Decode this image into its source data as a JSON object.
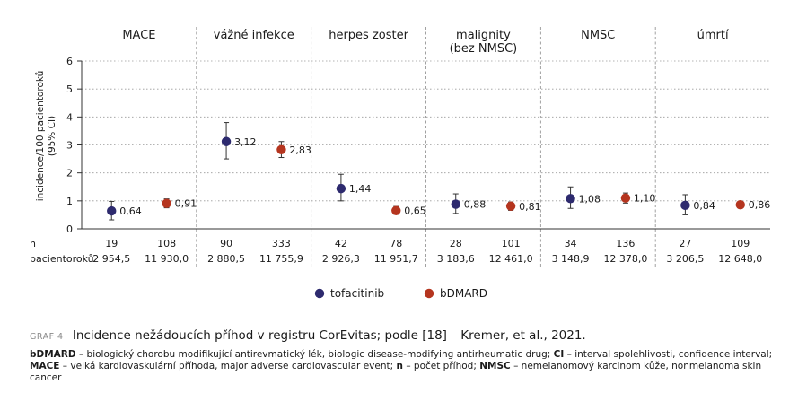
{
  "chart_data": {
    "type": "scatter",
    "ylabel": "incidence/100 pacientoroků (95% CI)",
    "ylabel_lines": [
      "incidence/100 pacientoroků",
      "(95% CI)"
    ],
    "ylim": [
      0,
      6
    ],
    "yticks": [
      0,
      1,
      2,
      3,
      4,
      5,
      6
    ],
    "grid": "horizontal dotted",
    "legend_position": "bottom-center",
    "groups": [
      {
        "label": "MACE",
        "label_lines": [
          "MACE"
        ]
      },
      {
        "label": "vážné infekce",
        "label_lines": [
          "vážné infekce"
        ]
      },
      {
        "label": "herpes zoster",
        "label_lines": [
          "herpes zoster"
        ]
      },
      {
        "label": "malignity (bez NMSC)",
        "label_lines": [
          "malignity",
          "(bez NMSC)"
        ]
      },
      {
        "label": "NMSC",
        "label_lines": [
          "NMSC"
        ]
      },
      {
        "label": "úmrtí",
        "label_lines": [
          "úmrtí"
        ]
      }
    ],
    "series": [
      {
        "name": "tofacitinib",
        "color": "#2d2a6e",
        "values": [
          0.64,
          3.12,
          1.44,
          0.88,
          1.08,
          0.84
        ],
        "value_labels": [
          "0,64",
          "3,12",
          "1,44",
          "0,88",
          "1,08",
          "0,84"
        ],
        "ci_low": [
          0.32,
          2.5,
          1.0,
          0.55,
          0.73,
          0.5
        ],
        "ci_high": [
          0.98,
          3.8,
          1.95,
          1.25,
          1.5,
          1.22
        ],
        "n": [
          "19",
          "90",
          "42",
          "28",
          "34",
          "27"
        ],
        "patient_years": [
          "2 954,5",
          "2 880,5",
          "2 926,3",
          "3 183,6",
          "3 148,9",
          "3 206,5"
        ]
      },
      {
        "name": "bDMARD",
        "color": "#b5351f",
        "values": [
          0.91,
          2.83,
          0.65,
          0.81,
          1.1,
          0.86
        ],
        "value_labels": [
          "0,91",
          "2,83",
          "0,65",
          "0,81",
          "1,10",
          "0,86"
        ],
        "ci_low": [
          0.75,
          2.55,
          0.52,
          0.66,
          0.92,
          0.74
        ],
        "ci_high": [
          1.07,
          3.12,
          0.8,
          0.96,
          1.28,
          0.98
        ],
        "n": [
          "108",
          "333",
          "78",
          "101",
          "136",
          "109"
        ],
        "patient_years": [
          "11 930,0",
          "11 755,9",
          "11 951,7",
          "12 461,0",
          "12 378,0",
          "12 648,0"
        ]
      }
    ],
    "row_labels": {
      "n": "n",
      "patient_years": "pacientoroků"
    }
  },
  "caption": {
    "tag": "GRAF 4",
    "title": "Incidence nežádoucích příhod v registru CorEvitas; podle [18] – Kremer, et al., 2021.",
    "note_parts": [
      {
        "bold": true,
        "text": "bDMARD"
      },
      {
        "bold": false,
        "text": " – biologický chorobu modifikující antirevmatický lék, biologic disease-modifying antirheumatic drug; "
      },
      {
        "bold": true,
        "text": "CI"
      },
      {
        "bold": false,
        "text": " – interval spolehlivosti, confidence interval; "
      },
      {
        "bold": true,
        "text": "MACE"
      },
      {
        "bold": false,
        "text": " – velká kardiovaskulární příhoda, major adverse cardiovascular event; "
      },
      {
        "bold": true,
        "text": "n"
      },
      {
        "bold": false,
        "text": " – počet příhod; "
      },
      {
        "bold": true,
        "text": "NMSC"
      },
      {
        "bold": false,
        "text": " – nemelanomový karcinom kůže, nonmelanoma skin cancer"
      }
    ]
  }
}
